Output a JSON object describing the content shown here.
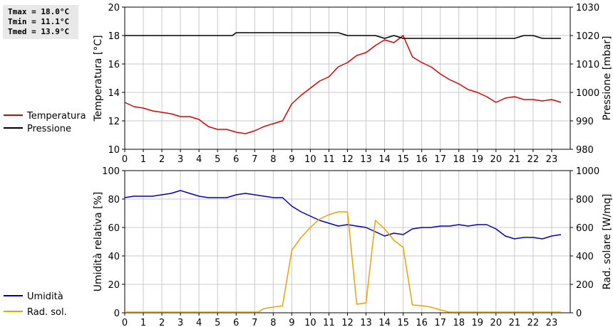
{
  "stats": {
    "tmax": "Tmax = 18.0°C",
    "tmin": "Tmin = 11.1°C",
    "tmed": "Tmed = 13.9°C"
  },
  "chart_data": [
    {
      "type": "line",
      "xlim": [
        0,
        24
      ],
      "x_ticks": [
        "0",
        "1",
        "2",
        "3",
        "4",
        "5",
        "6",
        "7",
        "8",
        "9",
        "10",
        "11",
        "12",
        "13",
        "14",
        "15",
        "16",
        "17",
        "18",
        "19",
        "20",
        "21",
        "22",
        "23"
      ],
      "ylabel_left": "Temperatura [°C]",
      "ylim_left": [
        10,
        20
      ],
      "y_ticks_left": [
        "10",
        "12",
        "14",
        "16",
        "18",
        "20"
      ],
      "ylabel_right": "Pressione [mbar]",
      "ylim_right": [
        980,
        1030
      ],
      "y_ticks_right": [
        "980",
        "990",
        "1000",
        "1010",
        "1020",
        "1030"
      ],
      "grid": true,
      "legend_position": "left",
      "series": [
        {
          "name": "Temperatura",
          "axis": "left",
          "color": "#dd0000",
          "x": [
            0,
            0.5,
            1,
            1.5,
            2,
            2.5,
            3,
            3.5,
            4,
            4.5,
            5,
            5.5,
            6,
            6.5,
            7,
            7.5,
            8,
            8.5,
            9,
            9.5,
            10,
            10.5,
            11,
            11.5,
            12,
            12.5,
            13,
            13.5,
            14,
            14.5,
            15,
            15.5,
            16,
            16.5,
            17,
            17.5,
            18,
            18.5,
            19,
            19.5,
            20,
            20.5,
            21,
            21.5,
            22,
            22.5,
            23,
            23.5
          ],
          "values": [
            13.3,
            13.0,
            12.9,
            12.7,
            12.6,
            12.5,
            12.3,
            12.3,
            12.1,
            11.6,
            11.4,
            11.4,
            11.2,
            11.1,
            11.3,
            11.6,
            11.8,
            12.0,
            13.2,
            13.8,
            14.3,
            14.8,
            15.1,
            15.8,
            16.1,
            16.6,
            16.8,
            17.3,
            17.7,
            17.5,
            18.0,
            16.5,
            16.1,
            15.8,
            15.3,
            14.9,
            14.6,
            14.2,
            14.0,
            13.7,
            13.3,
            13.6,
            13.7,
            13.5,
            13.5,
            13.4,
            13.5,
            13.3
          ]
        },
        {
          "name": "Pressione",
          "axis": "right",
          "color": "#000000",
          "x": [
            0,
            0.5,
            1,
            1.5,
            2,
            2.5,
            3,
            3.5,
            4,
            4.5,
            5,
            5.5,
            5.8,
            6,
            6.5,
            7,
            7.5,
            8,
            8.5,
            9,
            9.5,
            10,
            10.5,
            11,
            11.5,
            12,
            12.5,
            13,
            13.5,
            14,
            14.5,
            15,
            15.5,
            16,
            16.5,
            17,
            17.5,
            18,
            18.5,
            19,
            19.5,
            20,
            20.5,
            21,
            21.5,
            22,
            22.5,
            23,
            23.5
          ],
          "values": [
            1020,
            1020,
            1020,
            1020,
            1020,
            1020,
            1020,
            1020,
            1020,
            1020,
            1020,
            1020,
            1020,
            1021,
            1021,
            1021,
            1021,
            1021,
            1021,
            1021,
            1021,
            1021,
            1021,
            1021,
            1021,
            1020,
            1020,
            1020,
            1020,
            1019,
            1020,
            1019,
            1019,
            1019,
            1019,
            1019,
            1019,
            1019,
            1019,
            1019,
            1019,
            1019,
            1019,
            1019,
            1020,
            1020,
            1019,
            1019,
            1019
          ]
        }
      ]
    },
    {
      "type": "line",
      "xlim": [
        0,
        24
      ],
      "x_ticks": [
        "0",
        "1",
        "2",
        "3",
        "4",
        "5",
        "6",
        "7",
        "8",
        "9",
        "10",
        "11",
        "12",
        "13",
        "14",
        "15",
        "16",
        "17",
        "18",
        "19",
        "20",
        "21",
        "22",
        "23"
      ],
      "ylabel_left": "Umidità relativa [%]",
      "ylim_left": [
        0,
        100
      ],
      "y_ticks_left": [
        "0",
        "20",
        "40",
        "60",
        "80",
        "100"
      ],
      "ylabel_right": "Rad. solare [W/mq]",
      "ylim_right": [
        0,
        1000
      ],
      "y_ticks_right": [
        "0",
        "200",
        "400",
        "600",
        "800",
        "1000"
      ],
      "grid": true,
      "legend_position": "left",
      "series": [
        {
          "name": "Umidità",
          "axis": "left",
          "color": "#0000bb",
          "x": [
            0,
            0.5,
            1,
            1.5,
            2,
            2.5,
            3,
            3.5,
            4,
            4.5,
            5,
            5.5,
            6,
            6.5,
            7,
            7.5,
            8,
            8.5,
            9,
            9.5,
            10,
            10.5,
            11,
            11.5,
            12,
            12.5,
            13,
            13.5,
            14,
            14.5,
            15,
            15.5,
            16,
            16.5,
            17,
            17.5,
            18,
            18.5,
            19,
            19.5,
            20,
            20.5,
            21,
            21.5,
            22,
            22.5,
            23,
            23.5
          ],
          "values": [
            81,
            82,
            82,
            82,
            83,
            84,
            86,
            84,
            82,
            81,
            81,
            81,
            83,
            84,
            83,
            82,
            81,
            81,
            75,
            71,
            68,
            65,
            63,
            61,
            62,
            61,
            60,
            57,
            54,
            56,
            55,
            59,
            60,
            60,
            61,
            61,
            62,
            61,
            62,
            62,
            59,
            54,
            52,
            53,
            53,
            52,
            54,
            55
          ]
        },
        {
          "name": "Rad. sol.",
          "axis": "right",
          "color": "#f0a000",
          "x": [
            0,
            1,
            2,
            3,
            4,
            5,
            6,
            7,
            7.2,
            7.5,
            8,
            8.5,
            9,
            9.5,
            10,
            10.5,
            11,
            11.5,
            12,
            12.5,
            13,
            13.5,
            14,
            14.5,
            15,
            15.5,
            16,
            16.5,
            17,
            17.5,
            18,
            19,
            20,
            21,
            22,
            23,
            23.5
          ],
          "values": [
            5,
            5,
            5,
            5,
            5,
            5,
            5,
            5,
            5,
            30,
            40,
            50,
            440,
            530,
            600,
            660,
            690,
            710,
            710,
            60,
            70,
            650,
            590,
            510,
            460,
            55,
            50,
            40,
            20,
            5,
            5,
            5,
            5,
            5,
            5,
            5,
            5
          ]
        }
      ]
    }
  ]
}
